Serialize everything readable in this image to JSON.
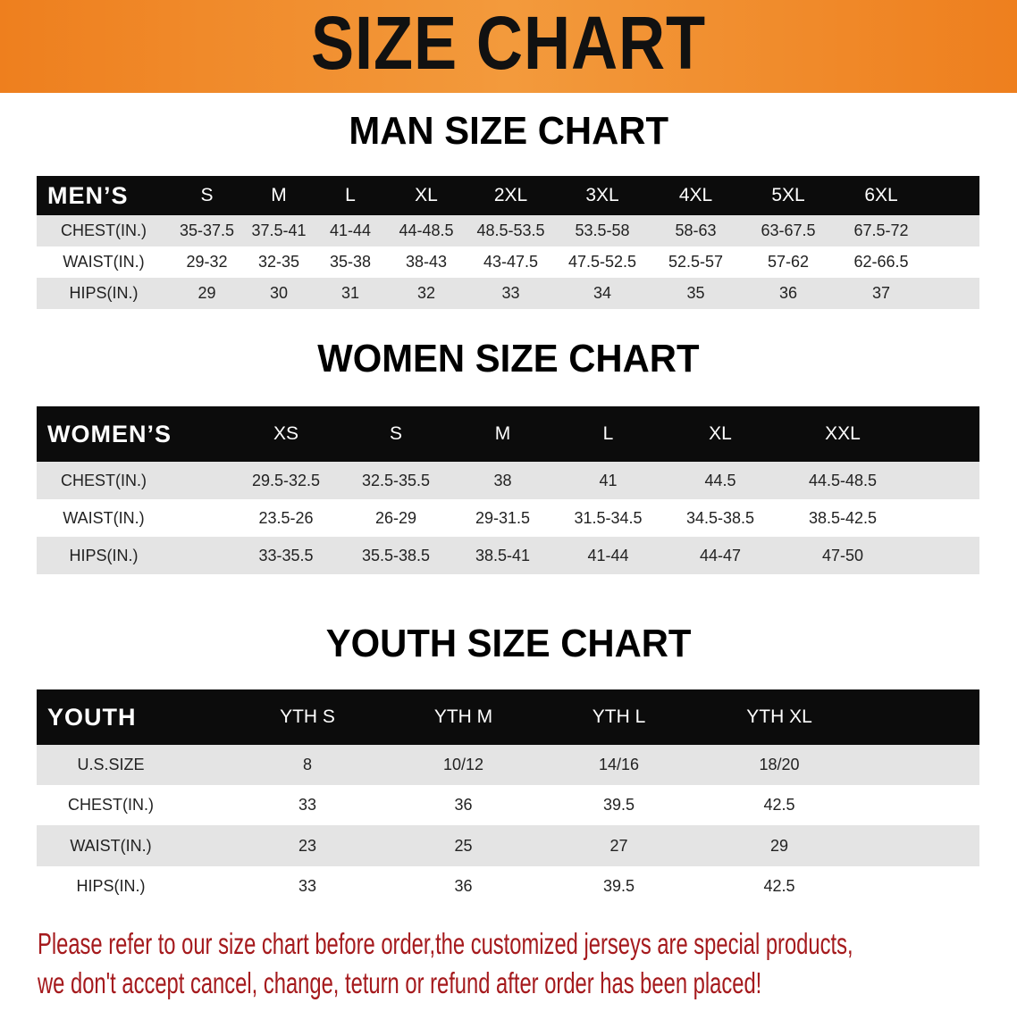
{
  "banner": {
    "title": "SIZE CHART",
    "color": "#ee7f1e"
  },
  "men": {
    "title": "MAN SIZE CHART",
    "header": "MEN’S",
    "sizes": [
      "S",
      "M",
      "L",
      "XL",
      "2XL",
      "3XL",
      "4XL",
      "5XL",
      "6XL"
    ],
    "rows": [
      {
        "label": "CHEST(IN.)",
        "values": [
          "35-37.5",
          "37.5-41",
          "41-44",
          "44-48.5",
          "48.5-53.5",
          "53.5-58",
          "58-63",
          "63-67.5",
          "67.5-72"
        ]
      },
      {
        "label": "WAIST(IN.)",
        "values": [
          "29-32",
          "32-35",
          "35-38",
          "38-43",
          "43-47.5",
          "47.5-52.5",
          "52.5-57",
          "57-62",
          "62-66.5"
        ]
      },
      {
        "label": "HIPS(IN.)",
        "values": [
          "29",
          "30",
          "31",
          "32",
          "33",
          "34",
          "35",
          "36",
          "37"
        ]
      }
    ]
  },
  "women": {
    "title": "WOMEN SIZE CHART",
    "header": "WOMEN’S",
    "sizes": [
      "XS",
      "S",
      "M",
      "L",
      "XL",
      "XXL"
    ],
    "rows": [
      {
        "label": "CHEST(IN.)",
        "values": [
          "29.5-32.5",
          "32.5-35.5",
          "38",
          "41",
          "44.5",
          "44.5-48.5"
        ]
      },
      {
        "label": "WAIST(IN.)",
        "values": [
          "23.5-26",
          "26-29",
          "29-31.5",
          "31.5-34.5",
          "34.5-38.5",
          "38.5-42.5"
        ]
      },
      {
        "label": "HIPS(IN.)",
        "values": [
          "33-35.5",
          "35.5-38.5",
          "38.5-41",
          "41-44",
          "44-47",
          "47-50"
        ]
      }
    ]
  },
  "youth": {
    "title": "YOUTH SIZE CHART",
    "header": "YOUTH",
    "sizes": [
      "YTH S",
      "YTH M",
      "YTH L",
      "YTH XL"
    ],
    "rows": [
      {
        "label": "U.S.SIZE",
        "values": [
          "8",
          "10/12",
          "14/16",
          "18/20"
        ]
      },
      {
        "label": "CHEST(IN.)",
        "values": [
          "33",
          "36",
          "39.5",
          "42.5"
        ]
      },
      {
        "label": "WAIST(IN.)",
        "values": [
          "23",
          "25",
          "27",
          "29"
        ]
      },
      {
        "label": "HIPS(IN.)",
        "values": [
          "33",
          "36",
          "39.5",
          "42.5"
        ]
      }
    ]
  },
  "notice": {
    "line1": "Please refer to our size chart before order,the customized jerseys are special products,",
    "line2": "we don't accept cancel, change, teturn or refund after order has been placed!",
    "color": "#a51a1d"
  }
}
